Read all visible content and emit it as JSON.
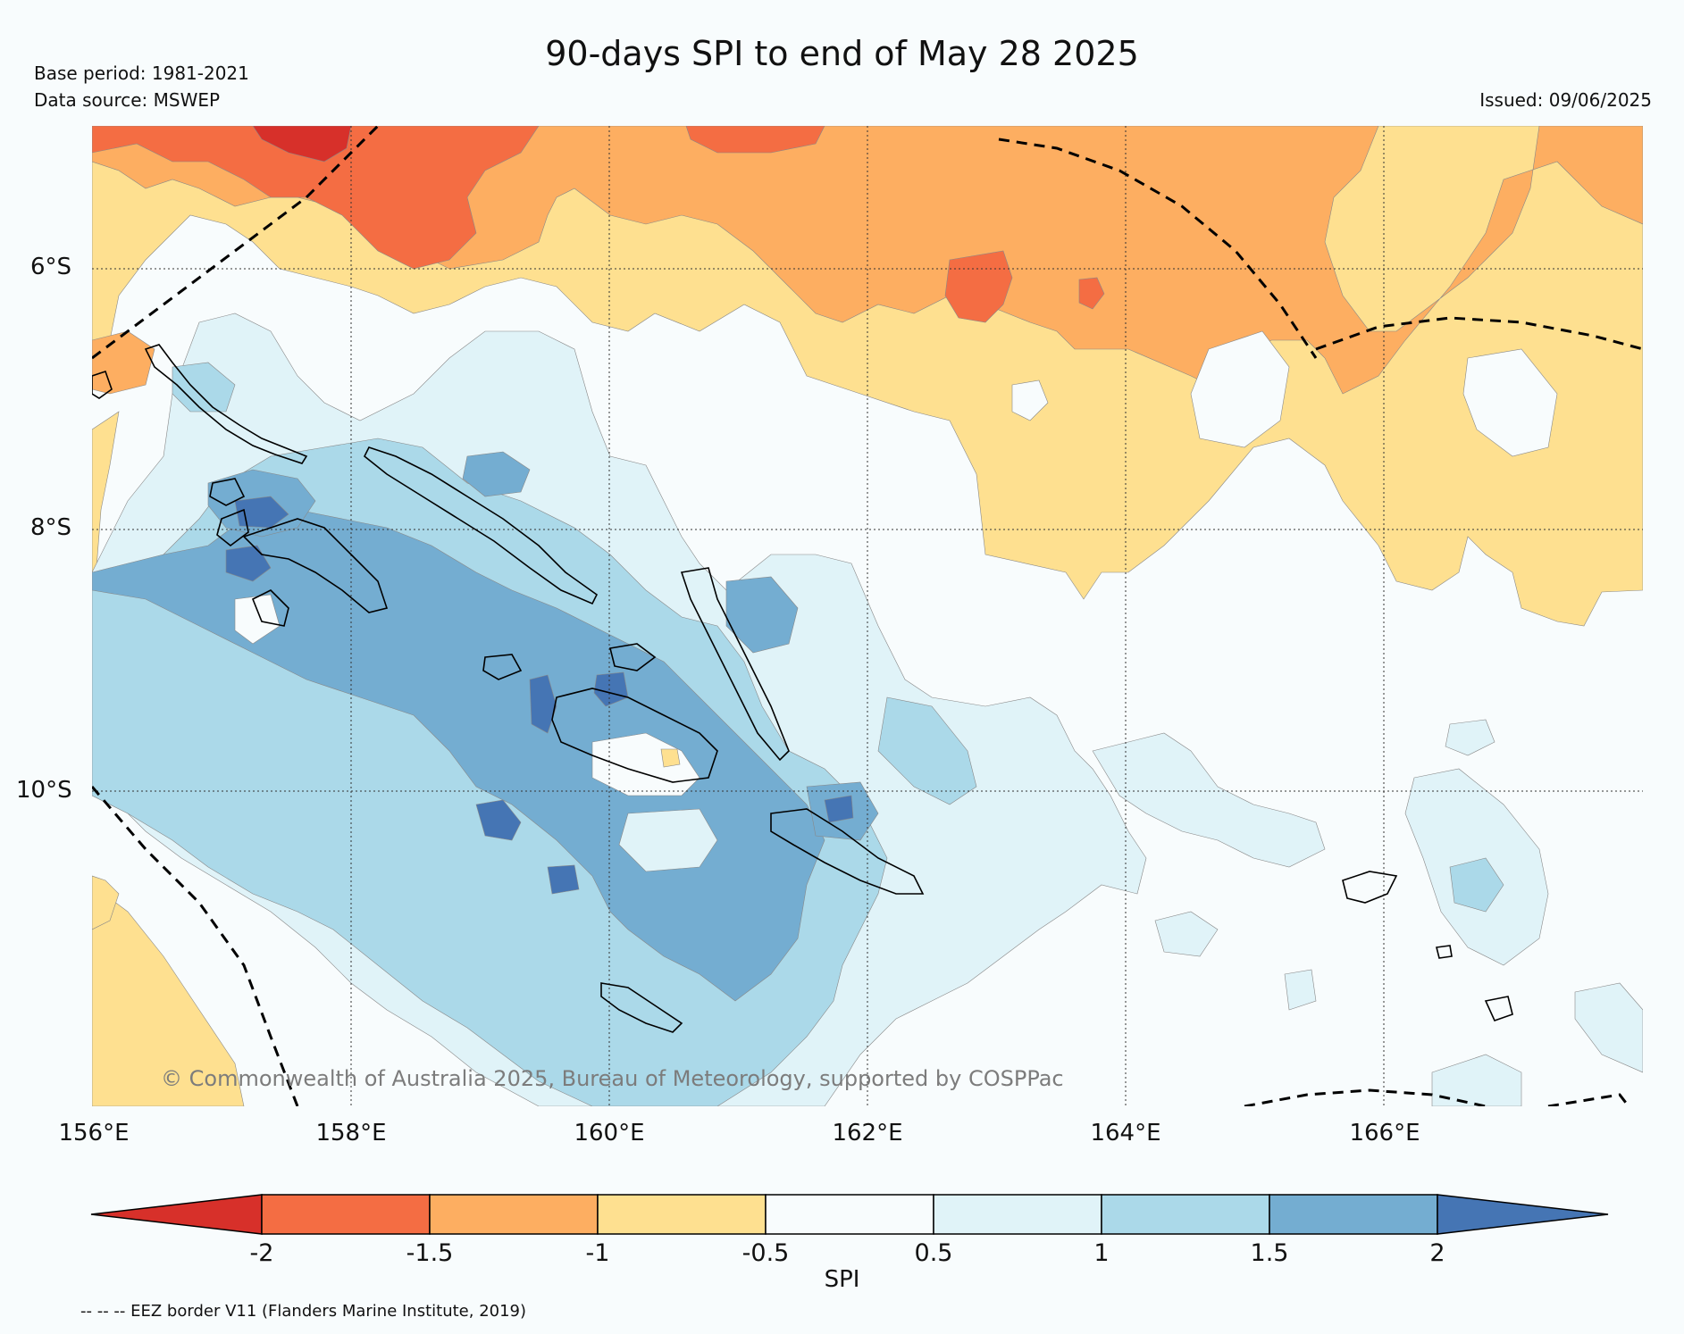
{
  "header": {
    "title": "90-days SPI to end of May 28 2025",
    "base_period": "Base period: 1981-2021",
    "data_source": "Data source: MSWEP",
    "issued": "Issued: 09/06/2025"
  },
  "map": {
    "lat_labels": [
      "6°S",
      "8°S",
      "10°S"
    ],
    "lon_labels": [
      "156°E",
      "158°E",
      "160°E",
      "162°E",
      "164°E",
      "166°E"
    ],
    "copyright": "© Commonwealth of Australia 2025, Bureau of Meteorology, supported by COSPPac",
    "colors": {
      "below_-2": "#d7302a",
      "-2_-1.5": "#f46d43",
      "-1.5_-1": "#fdae61",
      "-1_-0.5": "#fee090",
      "-0.5_0.5": "#f8fcfd",
      "0.5_1": "#e0f3f8",
      "1_1.5": "#abd9e9",
      "1.5_2": "#74add1",
      "above_2": "#4575b4"
    }
  },
  "colorbar": {
    "label": "SPI",
    "ticks": [
      "-2",
      "-1.5",
      "-1",
      "-0.5",
      "0.5",
      "1",
      "1.5",
      "2"
    ]
  },
  "footer": {
    "eez_note": "-- -- -- EEZ border V11 (Flanders Marine Institute, 2019)"
  }
}
